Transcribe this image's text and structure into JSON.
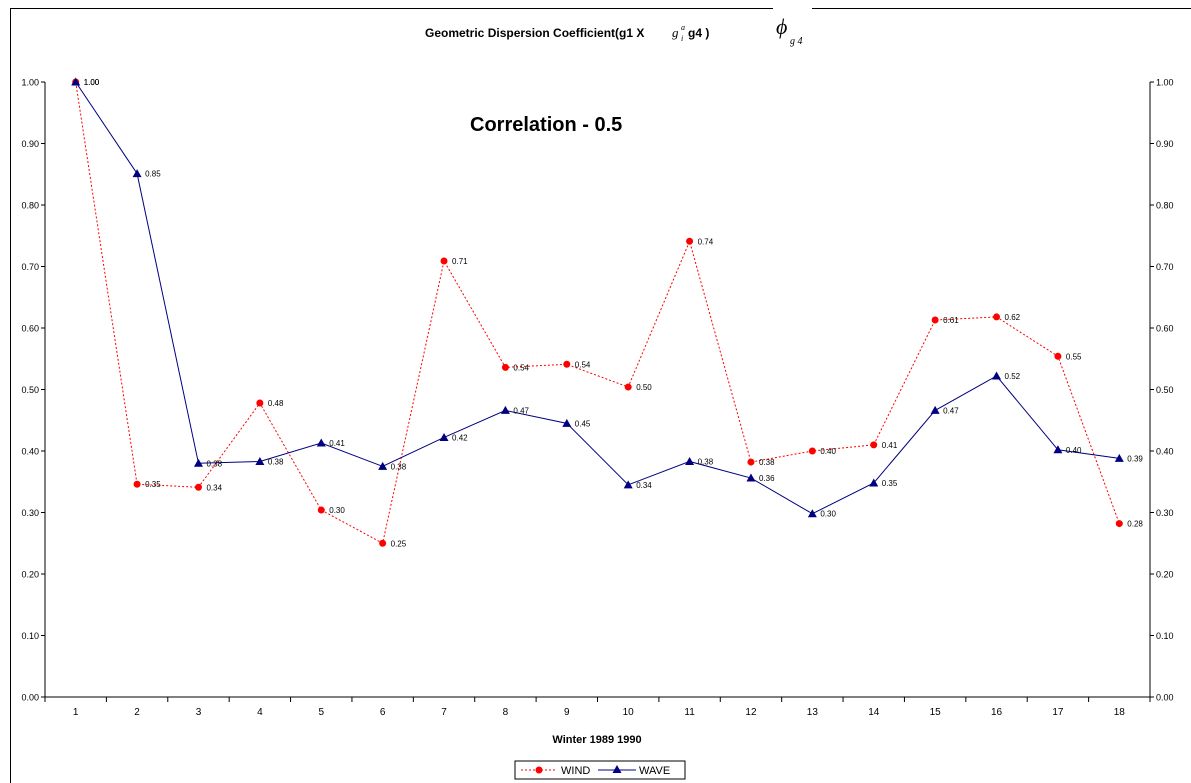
{
  "title": {
    "text": "Geometric Dispersion Coefficient(g1 X",
    "g_base": "g",
    "g_sub": "i",
    "g_sup": "a",
    "g_tail": "g4 )",
    "phi_symbol": "ϕ",
    "phi_sub": "g 4"
  },
  "annotation": "Correlation - 0.5",
  "legend_labels": {
    "wind": "WIND",
    "wave": "WAVE"
  },
  "colors": {
    "wind": "#ff0000",
    "wave": "#000080",
    "axis": "#000000"
  },
  "chart_data": {
    "type": "line",
    "title": "Geometric Dispersion Coefficient(g1 X g4 )",
    "xlabel": "Winter 1989 1990",
    "ylabel": "",
    "categories": [
      "1",
      "2",
      "3",
      "4",
      "5",
      "6",
      "7",
      "8",
      "9",
      "10",
      "11",
      "12",
      "13",
      "14",
      "15",
      "16",
      "17",
      "18"
    ],
    "ylim": [
      0,
      1
    ],
    "y_ticks": [
      "0.00",
      "0.10",
      "0.20",
      "0.30",
      "0.40",
      "0.50",
      "0.60",
      "0.70",
      "0.80",
      "0.90",
      "1.00"
    ],
    "secondary_axis": true,
    "grid": false,
    "legend_position": "bottom",
    "series": [
      {
        "name": "WIND",
        "marker": "circle",
        "line": "dotted",
        "values": [
          1.0,
          0.346,
          0.341,
          0.478,
          0.304,
          0.25,
          0.709,
          0.536,
          0.541,
          0.504,
          0.741,
          0.382,
          0.4,
          0.41,
          0.613,
          0.618,
          0.554,
          0.282
        ],
        "labels": [
          "1.00",
          "0.35",
          "0.34",
          "0.48",
          "0.30",
          "0.25",
          "0.71",
          "0.54",
          "0.54",
          "0.50",
          "0.74",
          "0.38",
          "0.40",
          "0.41",
          "0.61",
          "0.62",
          "0.55",
          "0.28"
        ]
      },
      {
        "name": "WAVE",
        "marker": "triangle",
        "line": "solid",
        "values": [
          1.0,
          0.851,
          0.38,
          0.383,
          0.413,
          0.375,
          0.422,
          0.466,
          0.445,
          0.345,
          0.383,
          0.356,
          0.298,
          0.348,
          0.466,
          0.522,
          0.402,
          0.388
        ],
        "labels": [
          "1.00",
          "0.85",
          "0.38",
          "0.38",
          "0.41",
          "0.38",
          "0.42",
          "0.47",
          "0.45",
          "0.34",
          "0.38",
          "0.36",
          "0.30",
          "0.35",
          "0.47",
          "0.52",
          "0.40",
          "0.39"
        ]
      }
    ]
  }
}
